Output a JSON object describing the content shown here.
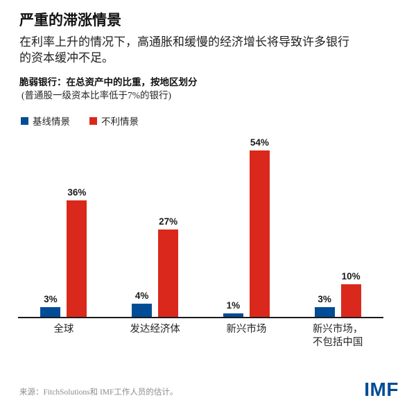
{
  "header": {
    "title": "严重的滞涨情景",
    "subtitle": "在利率上升的情况下，高通胀和缓慢的经济增长将导致许多银行\n的资本缓冲不足。"
  },
  "chart": {
    "heading": "脆弱银行：在总资产中的比重，按地区划分",
    "subheading": "(普通股一级资本比率低于7%的银行)"
  },
  "chart_data": {
    "type": "bar",
    "title": "脆弱银行：在总资产中的比重，按地区划分",
    "subtitle": "(普通股一级资本比率低于7%的银行)",
    "categories": [
      "全球",
      "发达经济体",
      "新兴市场",
      "新兴市场，\n不包括中国"
    ],
    "series": [
      {
        "name": "基线情景",
        "color": "#004C97",
        "values": [
          3,
          4,
          1,
          3
        ]
      },
      {
        "name": "不利情景",
        "color": "#DA291C",
        "values": [
          36,
          27,
          54,
          10
        ]
      }
    ],
    "value_label_suffix": "%",
    "xlabel": "",
    "ylabel": "",
    "ylim": [
      0,
      56
    ],
    "grid": false,
    "legend_position": "top-left"
  },
  "footer": {
    "source": "来源：FitchSolutions和 IMF工作人员的估计。",
    "logo": "IMF",
    "logo_color": "#004B97"
  },
  "colors": {
    "baseline_blue": "#004C97",
    "adverse_red": "#DA291C",
    "axis": "#1a1a1a"
  }
}
